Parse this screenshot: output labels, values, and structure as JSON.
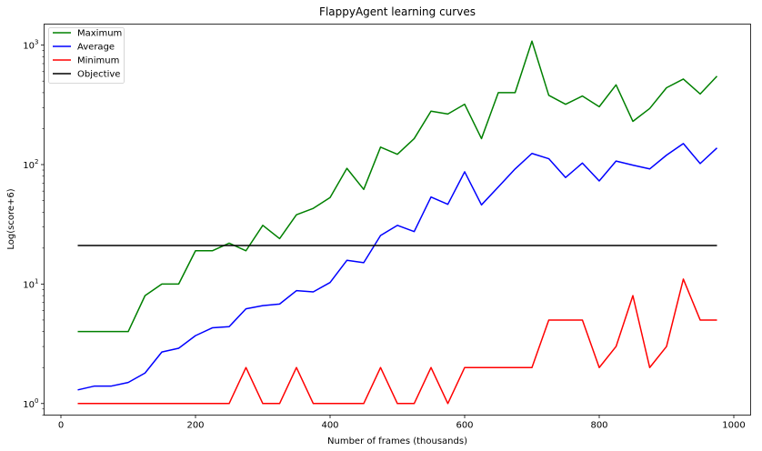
{
  "chart_data": {
    "type": "line",
    "title": "FlappyAgent learning curves",
    "xlabel": "Number of frames (thousands)",
    "ylabel": "Log(score+6)",
    "xlim": [
      -25,
      1025
    ],
    "ylim": [
      0.8,
      1500
    ],
    "yscale": "log",
    "xticks": [
      0,
      200,
      400,
      600,
      800,
      1000
    ],
    "yticks": [
      {
        "value": 1,
        "base": "10",
        "exp": "0"
      },
      {
        "value": 10,
        "base": "10",
        "exp": "1"
      },
      {
        "value": 100,
        "base": "10",
        "exp": "2"
      },
      {
        "value": 1000,
        "base": "10",
        "exp": "3"
      }
    ],
    "legend_position": "upper-left",
    "x": [
      25,
      50,
      75,
      100,
      125,
      150,
      175,
      200,
      225,
      250,
      275,
      300,
      325,
      350,
      375,
      400,
      425,
      450,
      475,
      500,
      525,
      550,
      575,
      600,
      625,
      650,
      675,
      700,
      725,
      750,
      775,
      800,
      825,
      850,
      875,
      900,
      925,
      950,
      975
    ],
    "series": [
      {
        "name": "Maximum",
        "color": "#008000",
        "values": [
          4,
          4,
          4,
          4,
          8,
          10,
          10,
          19,
          19,
          22,
          19,
          31,
          24,
          38,
          43,
          53,
          93,
          62,
          140,
          122,
          165,
          280,
          265,
          320,
          165,
          400,
          400,
          1080,
          380,
          320,
          375,
          305,
          465,
          230,
          295,
          440,
          520,
          390,
          550
        ]
      },
      {
        "name": "Average",
        "color": "#0000ff",
        "values": [
          1.3,
          1.4,
          1.4,
          1.5,
          1.8,
          2.7,
          2.9,
          3.7,
          4.3,
          4.4,
          6.2,
          6.6,
          6.8,
          8.8,
          8.6,
          10.3,
          15.8,
          15.1,
          25.5,
          31,
          27.5,
          53.5,
          46.5,
          87,
          46,
          65,
          92,
          124,
          112,
          78,
          103,
          73,
          107,
          99,
          92,
          120,
          150,
          102,
          138
        ]
      },
      {
        "name": "Minimum",
        "color": "#ff0000",
        "values": [
          1,
          1,
          1,
          1,
          1,
          1,
          1,
          1,
          1,
          1,
          2,
          1,
          1,
          2,
          1,
          1,
          1,
          1,
          2,
          1,
          1,
          2,
          1,
          2,
          2,
          2,
          2,
          2,
          5,
          5,
          5,
          2,
          3,
          8,
          2,
          3,
          11,
          5,
          5
        ]
      },
      {
        "name": "Objective",
        "color": "#000000",
        "values": [
          21,
          21,
          21,
          21,
          21,
          21,
          21,
          21,
          21,
          21,
          21,
          21,
          21,
          21,
          21,
          21,
          21,
          21,
          21,
          21,
          21,
          21,
          21,
          21,
          21,
          21,
          21,
          21,
          21,
          21,
          21,
          21,
          21,
          21,
          21,
          21,
          21,
          21,
          21
        ]
      }
    ]
  }
}
